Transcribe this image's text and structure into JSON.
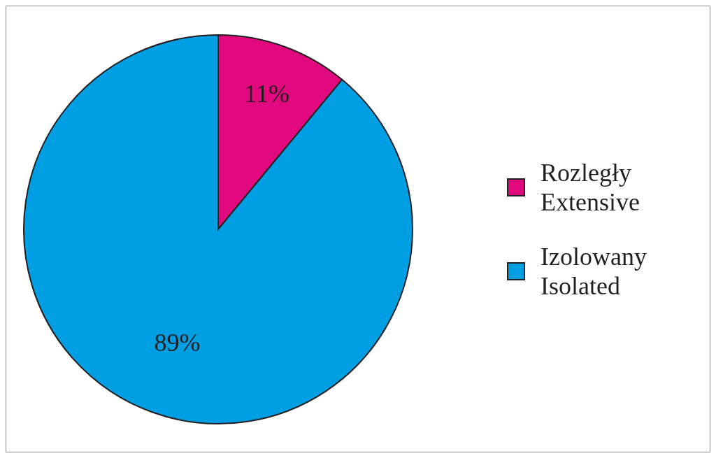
{
  "chart_data": {
    "type": "pie",
    "categories": [
      "Rozległy\nExtensive",
      "Izolowany\nIsolated"
    ],
    "values": [
      11,
      89
    ],
    "colors": [
      "#e2087e",
      "#009fe3"
    ],
    "value_labels": [
      "11%",
      "89%"
    ],
    "legend": "right"
  }
}
